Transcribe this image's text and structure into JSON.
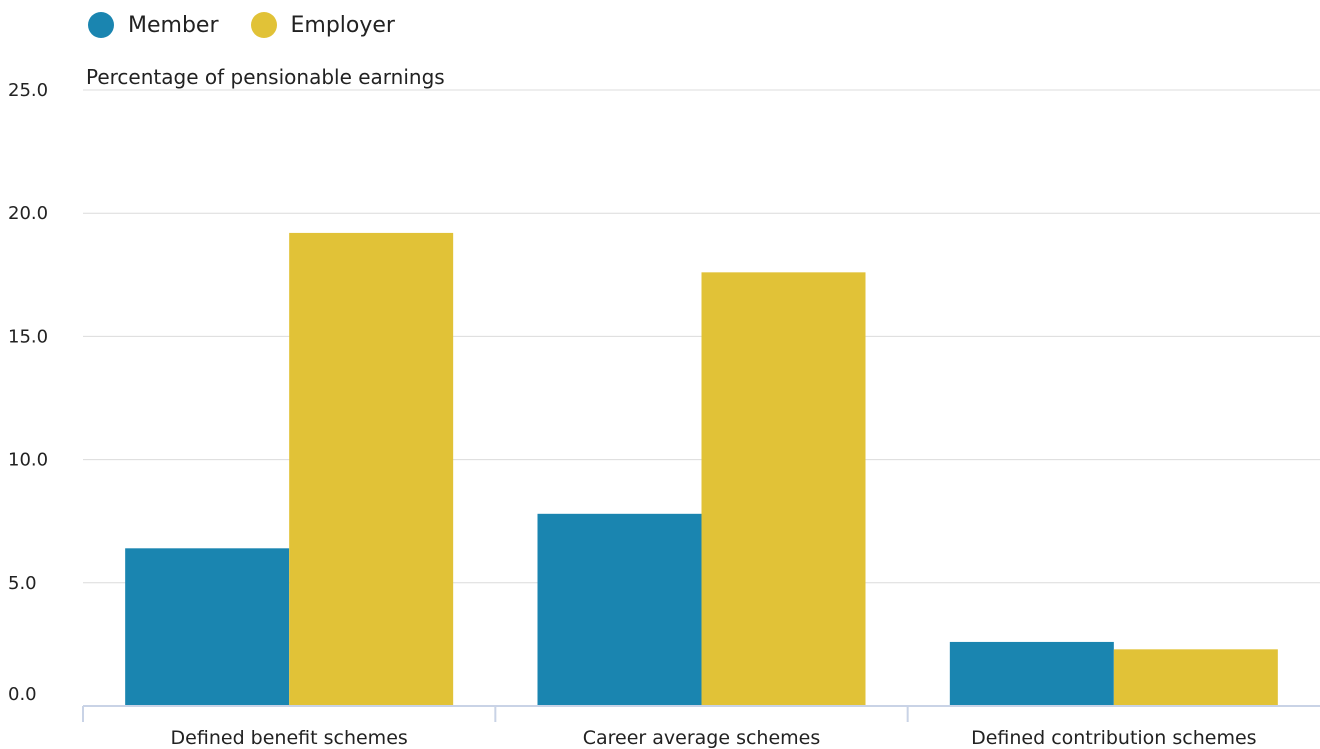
{
  "chart_data": {
    "type": "bar",
    "categories": [
      "Defined benefit schemes",
      "Career average schemes",
      "Defined contribution schemes"
    ],
    "series": [
      {
        "name": "Member",
        "color": "#1a85b0",
        "values": [
          6.4,
          7.8,
          2.6
        ]
      },
      {
        "name": "Employer",
        "color": "#e1c237",
        "values": [
          19.2,
          17.6,
          2.3
        ]
      }
    ],
    "ylabel": "Percentage of pensionable earnings",
    "ylim": [
      0,
      25
    ],
    "yticks": [
      "0.0",
      "5.0",
      "10.0",
      "15.0",
      "20.0",
      "25.0"
    ],
    "grid": true,
    "legend_position": "top-left"
  }
}
